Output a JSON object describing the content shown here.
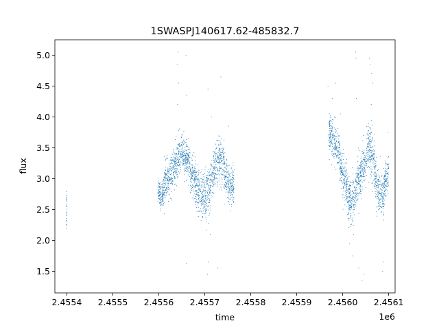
{
  "chart_data": {
    "type": "scatter",
    "title": "1SWASPJ140617.62-485832.7",
    "xlabel": "time",
    "ylabel": "flux",
    "x_offset_label": "1e6",
    "xlim": [
      2455374,
      2456114
    ],
    "ylim": [
      1.15,
      5.25
    ],
    "x_ticks": [
      2455400,
      2455500,
      2455600,
      2455700,
      2455800,
      2455900,
      2456000,
      2456100
    ],
    "x_tick_labels": [
      "2.4554",
      "2.4555",
      "2.4556",
      "2.4557",
      "2.4558",
      "2.4559",
      "2.4560",
      "2.4561"
    ],
    "y_ticks": [
      1.5,
      2.0,
      2.5,
      3.0,
      3.5,
      4.0,
      4.5,
      5.0
    ],
    "y_tick_labels": [
      "1.5",
      "2.0",
      "2.5",
      "3.0",
      "3.5",
      "4.0",
      "4.5",
      "5.0"
    ],
    "grid": false,
    "series": [
      {
        "color": "#1f77b4",
        "marker": "point",
        "segments": [
          {
            "x_start": 2455399,
            "x_end": 2455400,
            "center": [
              [
                2455399,
                2.6
              ],
              [
                2455400,
                2.5
              ]
            ],
            "spread": 0.35
          },
          {
            "x_start": 2455598,
            "x_end": 2455612,
            "center": [
              [
                2455598,
                2.8
              ],
              [
                2455605,
                2.7
              ],
              [
                2455612,
                2.85
              ]
            ],
            "spread": 0.2
          },
          {
            "x_start": 2455612,
            "x_end": 2455640,
            "center": [
              [
                2455612,
                2.95
              ],
              [
                2455622,
                3.0
              ],
              [
                2455630,
                3.1
              ],
              [
                2455640,
                3.3
              ]
            ],
            "spread": 0.3
          },
          {
            "x_start": 2455640,
            "x_end": 2455668,
            "center": [
              [
                2455640,
                3.3
              ],
              [
                2455648,
                3.35
              ],
              [
                2455655,
                3.4
              ],
              [
                2455668,
                3.25
              ]
            ],
            "spread": 0.3
          },
          {
            "x_start": 2455668,
            "x_end": 2455682,
            "center": [
              [
                2455668,
                3.1
              ],
              [
                2455675,
                3.0
              ],
              [
                2455682,
                2.9
              ]
            ],
            "spread": 0.35
          },
          {
            "x_start": 2455682,
            "x_end": 2455712,
            "center": [
              [
                2455682,
                2.85
              ],
              [
                2455692,
                2.7
              ],
              [
                2455700,
                2.7
              ],
              [
                2455712,
                2.85
              ]
            ],
            "spread": 0.4
          },
          {
            "x_start": 2455712,
            "x_end": 2455742,
            "center": [
              [
                2455712,
                2.95
              ],
              [
                2455720,
                3.1
              ],
              [
                2455730,
                3.3
              ],
              [
                2455742,
                3.25
              ]
            ],
            "spread": 0.35
          },
          {
            "x_start": 2455742,
            "x_end": 2455764,
            "center": [
              [
                2455742,
                3.1
              ],
              [
                2455752,
                2.95
              ],
              [
                2455764,
                2.85
              ]
            ],
            "spread": 0.3
          },
          {
            "x_start": 2455970,
            "x_end": 2455994,
            "center": [
              [
                2455970,
                3.75
              ],
              [
                2455980,
                3.6
              ],
              [
                2455994,
                3.35
              ]
            ],
            "spread": 0.35
          },
          {
            "x_start": 2455994,
            "x_end": 2456010,
            "center": [
              [
                2455994,
                3.2
              ],
              [
                2456002,
                3.0
              ],
              [
                2456010,
                2.85
              ]
            ],
            "spread": 0.35
          },
          {
            "x_start": 2456010,
            "x_end": 2456030,
            "center": [
              [
                2456010,
                2.7
              ],
              [
                2456020,
                2.6
              ],
              [
                2456030,
                2.8
              ]
            ],
            "spread": 0.35
          },
          {
            "x_start": 2456030,
            "x_end": 2456052,
            "center": [
              [
                2456030,
                2.95
              ],
              [
                2456040,
                3.1
              ],
              [
                2456052,
                3.35
              ]
            ],
            "spread": 0.35
          },
          {
            "x_start": 2456052,
            "x_end": 2456070,
            "center": [
              [
                2456052,
                3.5
              ],
              [
                2456060,
                3.45
              ],
              [
                2456070,
                3.3
              ]
            ],
            "spread": 0.4
          },
          {
            "x_start": 2456070,
            "x_end": 2456090,
            "center": [
              [
                2456070,
                3.0
              ],
              [
                2456080,
                2.75
              ],
              [
                2456090,
                2.7
              ]
            ],
            "spread": 0.35
          },
          {
            "x_start": 2456090,
            "x_end": 2456100,
            "center": [
              [
                2456090,
                2.9
              ],
              [
                2456100,
                3.1
              ]
            ],
            "spread": 0.3
          }
        ],
        "outliers": [
          [
            2455640,
            4.85
          ],
          [
            2455642,
            5.05
          ],
          [
            2455643,
            4.55
          ],
          [
            2455641,
            4.2
          ],
          [
            2455659,
            5.0
          ],
          [
            2455660,
            4.35
          ],
          [
            2455707,
            4.45
          ],
          [
            2455706,
            1.45
          ],
          [
            2455708,
            1.65
          ],
          [
            2455735,
            4.65
          ],
          [
            2455715,
            4.0
          ],
          [
            2455712,
            2.1
          ],
          [
            2455660,
            1.62
          ],
          [
            2455728,
            1.55
          ],
          [
            2455752,
            3.85
          ],
          [
            2455968,
            4.5
          ],
          [
            2455985,
            4.55
          ],
          [
            2455978,
            4.3
          ],
          [
            2456028,
            5.05
          ],
          [
            2456029,
            4.95
          ],
          [
            2456058,
            4.95
          ],
          [
            2456060,
            4.85
          ],
          [
            2456063,
            4.7
          ],
          [
            2456065,
            4.55
          ],
          [
            2456030,
            4.3
          ],
          [
            2456042,
            1.35
          ],
          [
            2456046,
            1.45
          ],
          [
            2456087,
            1.5
          ],
          [
            2456088,
            1.65
          ],
          [
            2456022,
            1.75
          ],
          [
            2456098,
            3.75
          ],
          [
            2456015,
            1.95
          ],
          [
            2456062,
            4.2
          ],
          [
            2456035,
            1.55
          ],
          [
            2455995,
            4.05
          ]
        ]
      }
    ]
  }
}
